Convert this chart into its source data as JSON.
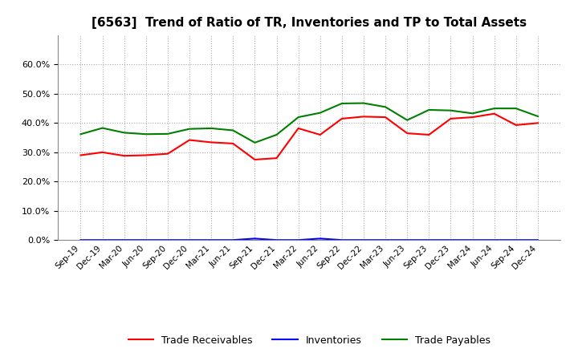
{
  "title": "[6563]  Trend of Ratio of TR, Inventories and TP to Total Assets",
  "x_labels": [
    "Sep-19",
    "Dec-19",
    "Mar-20",
    "Jun-20",
    "Sep-20",
    "Dec-20",
    "Mar-21",
    "Jun-21",
    "Sep-21",
    "Dec-21",
    "Mar-22",
    "Jun-22",
    "Sep-22",
    "Dec-22",
    "Mar-23",
    "Jun-23",
    "Sep-23",
    "Dec-23",
    "Mar-24",
    "Jun-24",
    "Sep-24",
    "Dec-24"
  ],
  "trade_receivables": [
    0.29,
    0.3,
    0.288,
    0.29,
    0.295,
    0.342,
    0.334,
    0.33,
    0.275,
    0.28,
    0.382,
    0.36,
    0.415,
    0.422,
    0.42,
    0.365,
    0.36,
    0.415,
    0.42,
    0.432,
    0.393,
    0.4
  ],
  "inventories": [
    0.0,
    0.0,
    0.0,
    0.0,
    0.0,
    0.0,
    0.0,
    0.0,
    0.005,
    0.0,
    0.0,
    0.005,
    0.0,
    0.0,
    0.0,
    0.0,
    0.0,
    0.0,
    0.0,
    0.0,
    0.0,
    0.0
  ],
  "trade_payables": [
    0.362,
    0.383,
    0.367,
    0.362,
    0.363,
    0.38,
    0.382,
    0.375,
    0.333,
    0.36,
    0.42,
    0.435,
    0.467,
    0.468,
    0.455,
    0.41,
    0.445,
    0.443,
    0.433,
    0.45,
    0.45,
    0.423
  ],
  "color_tr": "#FF0000",
  "color_inv": "#0000FF",
  "color_tp": "#008000",
  "ylim": [
    0.0,
    0.7
  ],
  "yticks": [
    0.0,
    0.1,
    0.2,
    0.3,
    0.4,
    0.5,
    0.6
  ],
  "bg_color": "#FFFFFF",
  "grid_color": "#AAAAAA"
}
